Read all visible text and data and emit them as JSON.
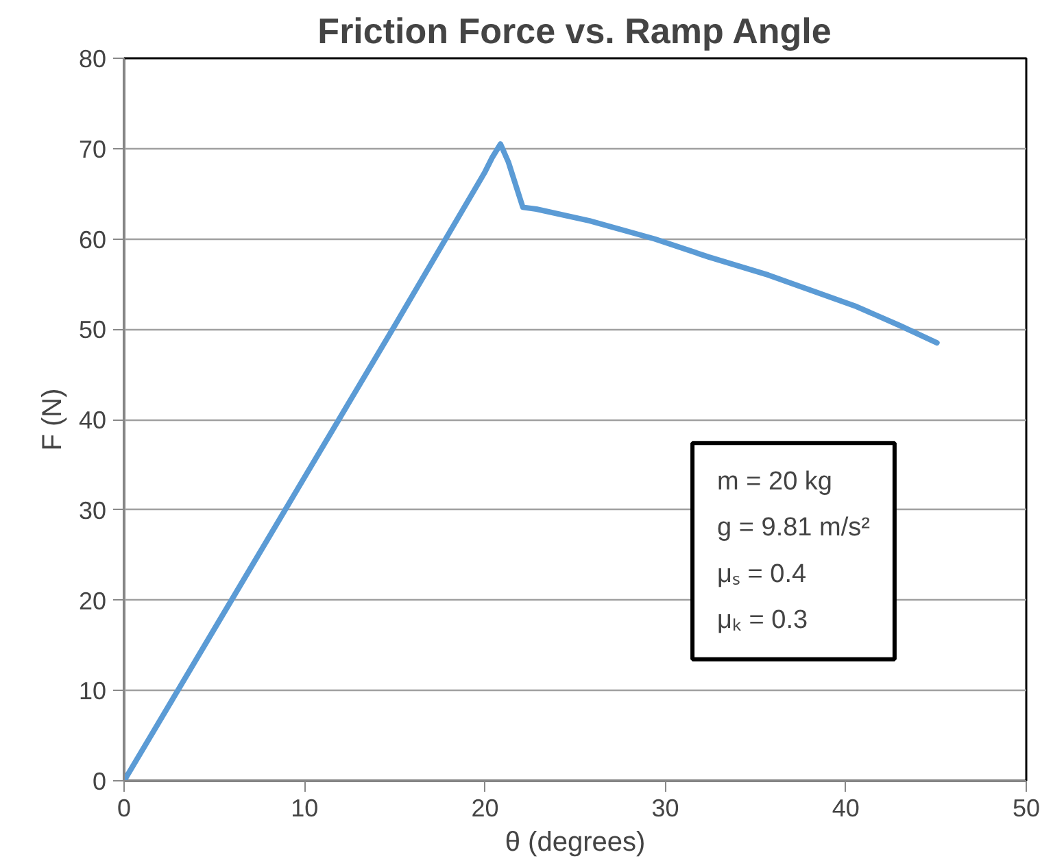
{
  "chart_data": {
    "type": "line",
    "title": "Friction Force vs. Ramp Angle",
    "xlabel": "θ (degrees)",
    "ylabel": "F (N)",
    "x": [
      0,
      5,
      10,
      15,
      19.97,
      20.4,
      20.86,
      21.3,
      22.1,
      22.85,
      25.8,
      29.4,
      32.4,
      35.7,
      40.6,
      43.0,
      45.05
    ],
    "series": [
      {
        "color": "#5b9bd5",
        "values": [
          0,
          16.8,
          33.6,
          50.4,
          67.3,
          69.0,
          70.5,
          68.5,
          63.5,
          63.3,
          62.0,
          60.0,
          58.0,
          56.0,
          52.5,
          50.4,
          48.5
        ]
      }
    ],
    "xlim": [
      0,
      50
    ],
    "xticks": [
      0,
      10,
      20,
      30,
      40,
      50
    ],
    "ylim": [
      0,
      80
    ],
    "yticks": [
      0,
      10,
      20,
      30,
      40,
      50,
      60,
      70,
      80
    ],
    "grid": "y",
    "marker": "none",
    "line_style": "solid",
    "annotations": [
      "m = 20 kg",
      "g = 9.81 m/s²",
      "μₛ = 0.4",
      "μₖ = 0.3"
    ]
  }
}
